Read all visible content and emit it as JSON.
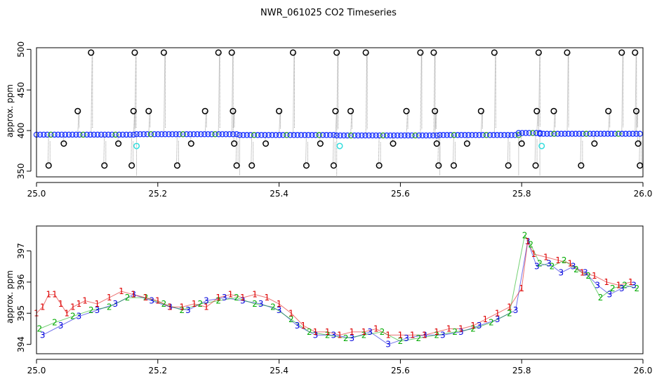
{
  "title": "NWR_061025  CO2 Timeseries",
  "chart_data": [
    {
      "type": "scatter",
      "ylabel": "approx. ppm",
      "xlim": [
        25.0,
        26.0
      ],
      "ylim": [
        343,
        502
      ],
      "xticks": [
        "25.0",
        "25.2",
        "25.4",
        "25.6",
        "25.8",
        "26.0"
      ],
      "xtick_values": [
        25.0,
        25.2,
        25.4,
        25.6,
        25.8,
        26.0
      ],
      "yticks": [
        "350",
        "400",
        "450",
        "500"
      ],
      "ytick_values": [
        350,
        400,
        450,
        500
      ],
      "colors": {
        "baseline": "#1a33ff",
        "outlier": "#000000",
        "cyan": "#33dddd",
        "spike": "#999999",
        "mid": "#2a9a2a"
      },
      "baseline_segments": [
        {
          "x0": 25.0,
          "x1": 25.16,
          "y": 395
        },
        {
          "x0": 25.165,
          "x1": 25.33,
          "y": 395.5
        },
        {
          "x0": 25.335,
          "x1": 25.49,
          "y": 394.5
        },
        {
          "x0": 25.495,
          "x1": 25.66,
          "y": 394
        },
        {
          "x0": 25.665,
          "x1": 25.795,
          "y": 394.5
        },
        {
          "x0": 25.795,
          "x1": 25.83,
          "y": 397
        },
        {
          "x0": 25.83,
          "x1": 25.995,
          "y": 396
        }
      ],
      "outliers_black": [
        {
          "x": 25.02,
          "y": 357
        },
        {
          "x": 25.045,
          "y": 384
        },
        {
          "x": 25.068,
          "y": 424
        },
        {
          "x": 25.09,
          "y": 496
        },
        {
          "x": 25.112,
          "y": 357
        },
        {
          "x": 25.135,
          "y": 384
        },
        {
          "x": 25.157,
          "y": 357
        },
        {
          "x": 25.16,
          "y": 424
        },
        {
          "x": 25.162,
          "y": 496
        },
        {
          "x": 25.185,
          "y": 424
        },
        {
          "x": 25.21,
          "y": 496
        },
        {
          "x": 25.232,
          "y": 357
        },
        {
          "x": 25.255,
          "y": 384
        },
        {
          "x": 25.278,
          "y": 424
        },
        {
          "x": 25.3,
          "y": 496
        },
        {
          "x": 25.322,
          "y": 496
        },
        {
          "x": 25.324,
          "y": 424
        },
        {
          "x": 25.326,
          "y": 384
        },
        {
          "x": 25.33,
          "y": 357
        },
        {
          "x": 25.355,
          "y": 357
        },
        {
          "x": 25.378,
          "y": 384
        },
        {
          "x": 25.4,
          "y": 424
        },
        {
          "x": 25.423,
          "y": 496
        },
        {
          "x": 25.445,
          "y": 357
        },
        {
          "x": 25.468,
          "y": 384
        },
        {
          "x": 25.49,
          "y": 357
        },
        {
          "x": 25.493,
          "y": 424
        },
        {
          "x": 25.495,
          "y": 496
        },
        {
          "x": 25.518,
          "y": 424
        },
        {
          "x": 25.543,
          "y": 496
        },
        {
          "x": 25.565,
          "y": 357
        },
        {
          "x": 25.588,
          "y": 384
        },
        {
          "x": 25.61,
          "y": 424
        },
        {
          "x": 25.633,
          "y": 496
        },
        {
          "x": 25.655,
          "y": 496
        },
        {
          "x": 25.657,
          "y": 424
        },
        {
          "x": 25.66,
          "y": 384
        },
        {
          "x": 25.663,
          "y": 357
        },
        {
          "x": 25.688,
          "y": 357
        },
        {
          "x": 25.71,
          "y": 384
        },
        {
          "x": 25.733,
          "y": 424
        },
        {
          "x": 25.755,
          "y": 496
        },
        {
          "x": 25.778,
          "y": 357
        },
        {
          "x": 25.8,
          "y": 384
        },
        {
          "x": 25.823,
          "y": 357
        },
        {
          "x": 25.825,
          "y": 424
        },
        {
          "x": 25.828,
          "y": 496
        },
        {
          "x": 25.853,
          "y": 424
        },
        {
          "x": 25.875,
          "y": 496
        },
        {
          "x": 25.898,
          "y": 357
        },
        {
          "x": 25.92,
          "y": 384
        },
        {
          "x": 25.943,
          "y": 424
        },
        {
          "x": 25.965,
          "y": 496
        },
        {
          "x": 25.987,
          "y": 496
        },
        {
          "x": 25.989,
          "y": 424
        },
        {
          "x": 25.992,
          "y": 384
        },
        {
          "x": 25.995,
          "y": 357
        }
      ],
      "outliers_cyan": [
        {
          "x": 25.165,
          "y": 381
        },
        {
          "x": 25.5,
          "y": 381
        },
        {
          "x": 25.833,
          "y": 381
        }
      ]
    },
    {
      "type": "scatter",
      "ylabel": "approx. ppm",
      "xlim": [
        25.0,
        26.0
      ],
      "ylim": [
        393.7,
        397.8
      ],
      "xticks": [
        "25.0",
        "25.2",
        "25.4",
        "25.6",
        "25.8",
        "26.0"
      ],
      "xtick_values": [
        25.0,
        25.2,
        25.4,
        25.6,
        25.8,
        26.0
      ],
      "yticks": [
        "394",
        "395",
        "396",
        "397"
      ],
      "ytick_values": [
        394,
        395,
        396,
        397
      ],
      "colors": {
        "1": "#dd0000",
        "2": "#00aa00",
        "3": "#0000dd",
        "line": "#dd0000"
      },
      "series": [
        {
          "name": "1",
          "x": [
            25.0,
            25.01,
            25.02,
            25.03,
            25.04,
            25.05,
            25.06,
            25.07,
            25.08,
            25.1,
            25.12,
            25.14,
            25.16,
            25.18,
            25.2,
            25.22,
            25.24,
            25.26,
            25.28,
            25.3,
            25.32,
            25.34,
            25.36,
            25.38,
            25.4,
            25.42,
            25.44,
            25.46,
            25.48,
            25.5,
            25.52,
            25.54,
            25.56,
            25.58,
            25.6,
            25.62,
            25.64,
            25.66,
            25.68,
            25.7,
            25.72,
            25.74,
            25.76,
            25.78,
            25.8,
            25.81,
            25.82,
            25.84,
            25.86,
            25.88,
            25.9,
            25.92,
            25.94,
            25.96,
            25.98
          ],
          "y": [
            395.0,
            395.2,
            395.6,
            395.6,
            395.3,
            395.0,
            395.2,
            395.3,
            395.4,
            395.3,
            395.5,
            395.7,
            395.6,
            395.5,
            395.4,
            395.2,
            395.2,
            395.3,
            395.2,
            395.5,
            395.6,
            395.5,
            395.6,
            395.5,
            395.3,
            395.0,
            394.6,
            394.4,
            394.4,
            394.3,
            394.4,
            394.4,
            394.5,
            394.3,
            394.3,
            394.3,
            394.3,
            394.4,
            394.5,
            394.5,
            394.6,
            394.8,
            395.0,
            395.2,
            395.8,
            397.3,
            396.9,
            396.8,
            396.7,
            396.6,
            396.3,
            396.2,
            396.0,
            395.9,
            396.0
          ]
        },
        {
          "name": "2",
          "x": [
            25.005,
            25.03,
            25.06,
            25.09,
            25.12,
            25.15,
            25.18,
            25.21,
            25.24,
            25.27,
            25.3,
            25.33,
            25.36,
            25.39,
            25.42,
            25.45,
            25.48,
            25.51,
            25.54,
            25.57,
            25.6,
            25.63,
            25.66,
            25.69,
            25.72,
            25.75,
            25.78,
            25.805,
            25.815,
            25.83,
            25.85,
            25.87,
            25.89,
            25.91,
            25.93,
            25.95,
            25.97,
            25.99
          ],
          "y": [
            394.5,
            394.7,
            394.9,
            395.1,
            395.2,
            395.5,
            395.5,
            395.3,
            395.1,
            395.3,
            395.4,
            395.5,
            395.3,
            395.2,
            394.8,
            394.4,
            394.3,
            394.2,
            394.3,
            394.4,
            394.1,
            394.2,
            394.3,
            394.4,
            394.5,
            394.7,
            395.0,
            397.5,
            397.2,
            396.6,
            396.5,
            396.7,
            396.4,
            396.2,
            395.5,
            395.8,
            395.9,
            395.8
          ]
        },
        {
          "name": "3",
          "x": [
            25.01,
            25.04,
            25.07,
            25.1,
            25.13,
            25.16,
            25.19,
            25.22,
            25.25,
            25.28,
            25.31,
            25.34,
            25.37,
            25.4,
            25.43,
            25.46,
            25.49,
            25.52,
            25.55,
            25.58,
            25.61,
            25.64,
            25.67,
            25.7,
            25.73,
            25.76,
            25.79,
            25.81,
            25.825,
            25.845,
            25.865,
            25.885,
            25.905,
            25.925,
            25.945,
            25.965,
            25.985
          ],
          "y": [
            394.3,
            394.6,
            394.9,
            395.1,
            395.3,
            395.6,
            395.4,
            395.2,
            395.1,
            395.4,
            395.5,
            395.4,
            395.3,
            395.1,
            394.6,
            394.3,
            394.3,
            394.2,
            394.4,
            394.0,
            394.2,
            394.3,
            394.3,
            394.4,
            394.6,
            394.8,
            395.1,
            397.3,
            396.5,
            396.6,
            396.3,
            396.5,
            396.3,
            395.9,
            395.6,
            395.8,
            395.9
          ]
        }
      ]
    }
  ]
}
